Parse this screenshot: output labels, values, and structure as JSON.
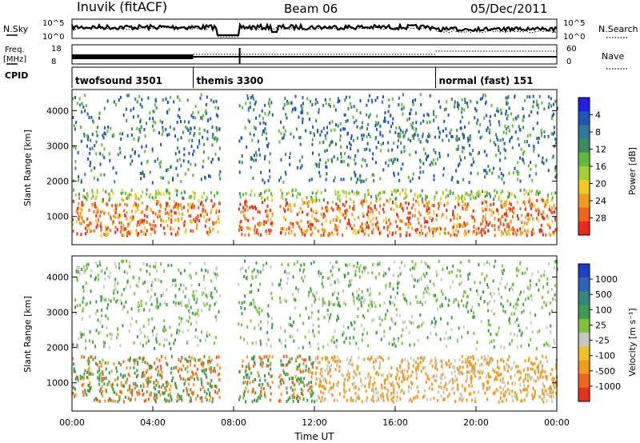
{
  "header": {
    "site": "Inuvik (fitACF)",
    "beam": "Beam 06",
    "date": "05/Dec/2011"
  },
  "summary_panels": {
    "nsky_label": "N.Sky",
    "nsky_ticks": [
      "10^5",
      "10^0"
    ],
    "nsearch_label": "N.Search",
    "nsearch_ticks": [
      "10^5",
      "10^0"
    ],
    "freq_label_1": "Freq.",
    "freq_label_2": "[MHz]",
    "freq_ticks": [
      "18",
      "8"
    ],
    "nave_label": "Nave",
    "nave_ticks": [
      "60",
      "0"
    ],
    "cpid_label": "CPID",
    "cpid_segments": [
      {
        "label": "twofsound 3501",
        "start_hour": 0
      },
      {
        "label": "themis 3300",
        "start_hour": 6
      },
      {
        "label": "normal (fast) 151",
        "start_hour": 18
      }
    ]
  },
  "chart_data": [
    {
      "type": "heatmap",
      "title": "",
      "xlabel": "",
      "ylabel": "Slant Range [km]",
      "xlim": [
        0,
        24
      ],
      "ylim": [
        200,
        4600
      ],
      "yticks": [
        "1000",
        "2000",
        "3000",
        "4000"
      ],
      "colorbar": {
        "label": "Power [dB]",
        "ticks": [
          "4",
          "8",
          "12",
          "16",
          "20",
          "24",
          "28"
        ],
        "colors": [
          "#1f1fe6",
          "#1f57b8",
          "#2e7a9e",
          "#3c8c60",
          "#5fbc3b",
          "#9fd232",
          "#f2cc1d",
          "#f39a1c",
          "#f2641c",
          "#ea2a17"
        ]
      },
      "data_gaps_hours": [
        [
          7.3,
          8.2
        ],
        [
          9.9,
          10.2
        ]
      ]
    },
    {
      "type": "heatmap",
      "title": "",
      "xlabel": "Time UT",
      "ylabel": "Slant Range [km]",
      "xlim": [
        0,
        24
      ],
      "ylim": [
        200,
        4600
      ],
      "yticks": [
        "1000",
        "2000",
        "3000",
        "4000"
      ],
      "xticks": [
        "00:00",
        "04:00",
        "08:00",
        "12:00",
        "16:00",
        "20:00",
        "00:00"
      ],
      "colorbar": {
        "label": "Velocity [m s⁻¹]",
        "ticks": [
          "1000",
          "500",
          "100",
          "25",
          "-25",
          "-100",
          "-500",
          "-1000"
        ],
        "colors": [
          "#1f3fc7",
          "#2f63b8",
          "#33897a",
          "#3e9c4c",
          "#79c43a",
          "#c8c8c2",
          "#f0c228",
          "#f39a1c",
          "#f2641c",
          "#e8301a"
        ]
      },
      "data_gaps_hours": [
        [
          7.3,
          8.2
        ],
        [
          9.9,
          10.2
        ]
      ]
    }
  ]
}
